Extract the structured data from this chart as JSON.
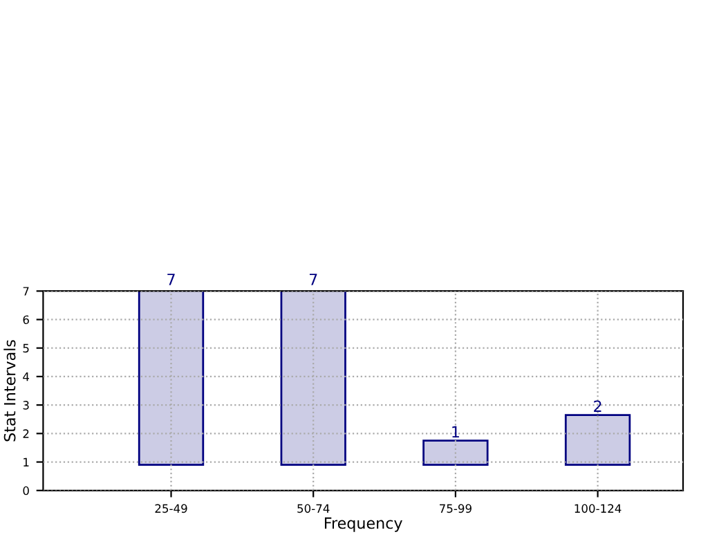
{
  "chart_data": {
    "type": "bar",
    "xlabel": "Frequency",
    "ylabel": "Stat Intervals",
    "categories": [
      "25-49",
      "50-74",
      "75-99",
      "100-124"
    ],
    "base": [
      0.9,
      0.9,
      0.9,
      0.9
    ],
    "values": [
      6.2,
      6.2,
      0.85,
      1.75
    ],
    "value_labels": [
      "7",
      "7",
      "1",
      "2"
    ],
    "color": "#ccccE5",
    "ylim": [
      0,
      7
    ],
    "yticks": [
      0,
      1,
      2,
      3,
      4,
      5,
      6,
      7
    ],
    "grid": true
  }
}
